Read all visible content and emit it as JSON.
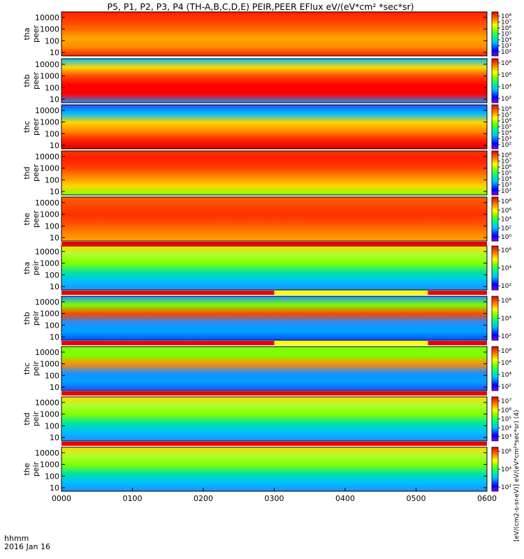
{
  "title": "P5, P1, P2, P3, P4 (TH-A,B,C,D,E) PEIR,PEER EFlux eV/(eV*cm² *sec*sr)",
  "time_axis": {
    "label_line1": "hhmm",
    "label_line2": "2016 Jan 16",
    "ticks": [
      "0000",
      "0100",
      "0200",
      "0300",
      "0400",
      "0500",
      "0600"
    ]
  },
  "colorbar_label": "[eV/(cm2-s-sr-eV)] eV/(eV*cm²*sec*sr) (4)",
  "chart_data": {
    "type": "heatmap",
    "x_unit": "hhmm (UT), 2016 Jan 16",
    "xlim": [
      "0000",
      "0600"
    ],
    "panels": [
      {
        "label_top": "tha",
        "label_bottom": "peer",
        "yticks": [
          "10",
          "100",
          "1000",
          "10000"
        ],
        "ylim": [
          5,
          30000
        ],
        "log": true,
        "cb_ticks": [
          "10⁸",
          "10⁷",
          "10⁶",
          "10⁵",
          "10⁴",
          "10³",
          "10²"
        ]
      },
      {
        "label_top": "thb",
        "label_bottom": "peer",
        "yticks": [
          "10",
          "100",
          "1000",
          "10000"
        ],
        "ylim": [
          5,
          30000
        ],
        "log": true,
        "cb_ticks": [
          "10⁸",
          "10⁶",
          "10⁴",
          "10²"
        ]
      },
      {
        "label_top": "thc",
        "label_bottom": "peer",
        "yticks": [
          "10",
          "100",
          "1000",
          "10000"
        ],
        "ylim": [
          5,
          30000
        ],
        "log": true,
        "cb_ticks": [
          "10⁸",
          "10⁷",
          "10⁶",
          "10⁵",
          "10⁴",
          "10³",
          "10²"
        ]
      },
      {
        "label_top": "thd",
        "label_bottom": "peer",
        "yticks": [
          "10",
          "100",
          "1000",
          "10000"
        ],
        "ylim": [
          5,
          30000
        ],
        "log": true,
        "cb_ticks": [
          "10⁸",
          "10⁷",
          "10⁶",
          "10⁵",
          "10⁴",
          "10³",
          "10²"
        ]
      },
      {
        "label_top": "the",
        "label_bottom": "peer",
        "yticks": [
          "10",
          "100",
          "1000",
          "10000"
        ],
        "ylim": [
          5,
          30000
        ],
        "log": true,
        "cb_ticks": [
          "10⁸",
          "10⁶",
          "10⁴",
          "10²",
          "10⁰"
        ]
      },
      {
        "label_top": "tha",
        "label_bottom": "peir",
        "yticks": [
          "10",
          "100",
          "1000",
          "10000"
        ],
        "ylim": [
          5,
          30000
        ],
        "log": true,
        "cb_ticks": [
          "10⁶",
          "10⁴",
          "10²"
        ]
      },
      {
        "label_top": "thb",
        "label_bottom": "peir",
        "yticks": [
          "10",
          "100",
          "1000",
          "10000"
        ],
        "ylim": [
          5,
          30000
        ],
        "log": true,
        "cb_ticks": [
          "10⁶",
          "10⁴",
          "10²"
        ]
      },
      {
        "label_top": "thc",
        "label_bottom": "peir",
        "yticks": [
          "10",
          "100",
          "1000",
          "10000"
        ],
        "ylim": [
          5,
          30000
        ],
        "log": true,
        "cb_ticks": [
          "10⁸",
          "10⁶",
          "10⁴",
          "10²"
        ]
      },
      {
        "label_top": "thd",
        "label_bottom": "peir",
        "yticks": [
          "10",
          "100",
          "1000",
          "10000"
        ],
        "ylim": [
          5,
          30000
        ],
        "log": true,
        "cb_ticks": [
          "10⁷",
          "10⁶",
          "10⁵",
          "10⁴",
          "10³"
        ]
      },
      {
        "label_top": "the",
        "label_bottom": "peir",
        "yticks": [
          "10",
          "100",
          "1000",
          "10000"
        ],
        "ylim": [
          5,
          30000
        ],
        "log": true,
        "cb_ticks": [
          "10⁶",
          "10⁴",
          "10²"
        ]
      }
    ],
    "flag_bars": [
      {
        "after_panel": 5,
        "segments": [
          {
            "from": "0000",
            "to": "0600",
            "color": "#e8000b"
          }
        ]
      },
      {
        "after_panel": 6,
        "segments": [
          {
            "from": "0000",
            "to": "0300",
            "color": "#e8000b"
          },
          {
            "from": "0300",
            "to": "0510",
            "color": "#ffff00"
          },
          {
            "from": "0510",
            "to": "0600",
            "color": "#e8000b"
          }
        ]
      },
      {
        "after_panel": 7,
        "segments": [
          {
            "from": "0000",
            "to": "0300",
            "color": "#e8000b"
          },
          {
            "from": "0300",
            "to": "0510",
            "color": "#ffff00"
          },
          {
            "from": "0510",
            "to": "0600",
            "color": "#e8000b"
          }
        ]
      },
      {
        "after_panel": 8,
        "segments": [
          {
            "from": "0000",
            "to": "0600",
            "color": "#e8000b"
          }
        ]
      },
      {
        "after_panel": 9,
        "segments": [
          {
            "from": "0000",
            "to": "0600",
            "color": "#e8000b"
          }
        ]
      }
    ],
    "grid": false,
    "colorscale": [
      "#00008b",
      "#0000ff",
      "#00bfff",
      "#00ffa0",
      "#7fff00",
      "#ffff00",
      "#ffa500",
      "#ff4500",
      "#dd0000"
    ]
  }
}
